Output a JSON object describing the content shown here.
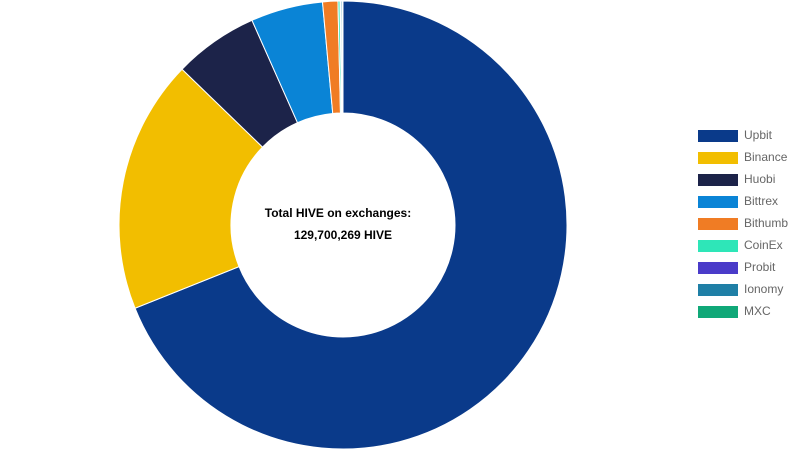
{
  "chart_data": {
    "type": "donut",
    "center_text": [
      "Total HIVE on exchanges:",
      "129,700,269 HIVE"
    ],
    "series": [
      {
        "name": "Upbit",
        "color": "#0a3a8a",
        "values": [
          68.94
        ]
      },
      {
        "name": "Binance",
        "color": "#f2be00",
        "values": [
          18.3
        ]
      },
      {
        "name": "Huobi",
        "color": "#1c2349",
        "values": [
          6.1
        ]
      },
      {
        "name": "Bittrex",
        "color": "#0a84d6",
        "values": [
          5.2
        ]
      },
      {
        "name": "Bithumb",
        "color": "#f07c24",
        "values": [
          1.1
        ]
      },
      {
        "name": "CoinEx",
        "color": "#2ee6b8",
        "values": [
          0.15
        ]
      },
      {
        "name": "Probit",
        "color": "#4a3bc9",
        "values": [
          0.05
        ]
      },
      {
        "name": "Ionomy",
        "color": "#1f7fa6",
        "values": [
          0.1
        ]
      },
      {
        "name": "MXC",
        "color": "#10a878",
        "values": [
          0.06
        ]
      }
    ],
    "legend": "right"
  }
}
